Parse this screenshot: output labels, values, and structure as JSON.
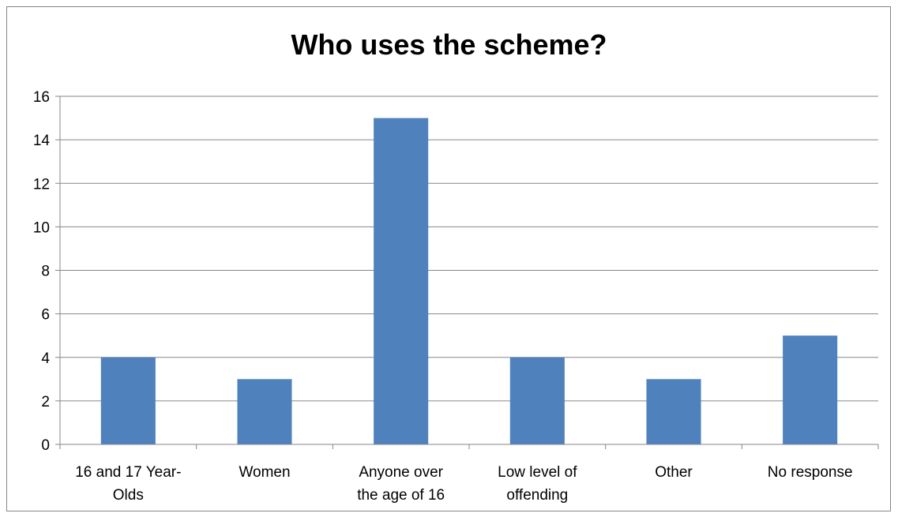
{
  "chart_data": {
    "type": "bar",
    "title": "Who uses the scheme?",
    "categories": [
      [
        "16 and 17 Year-",
        "Olds"
      ],
      [
        "Women"
      ],
      [
        "Anyone over",
        "the age of 16"
      ],
      [
        "Low level of",
        "offending"
      ],
      [
        "Other"
      ],
      [
        "No response"
      ]
    ],
    "values": [
      4,
      3,
      15,
      4,
      3,
      5
    ],
    "ylim": [
      0,
      16
    ],
    "yticks": [
      0,
      2,
      4,
      6,
      8,
      10,
      12,
      14,
      16
    ],
    "grid": true,
    "bar_color": "#4F81BD",
    "xlabel": "",
    "ylabel": ""
  }
}
